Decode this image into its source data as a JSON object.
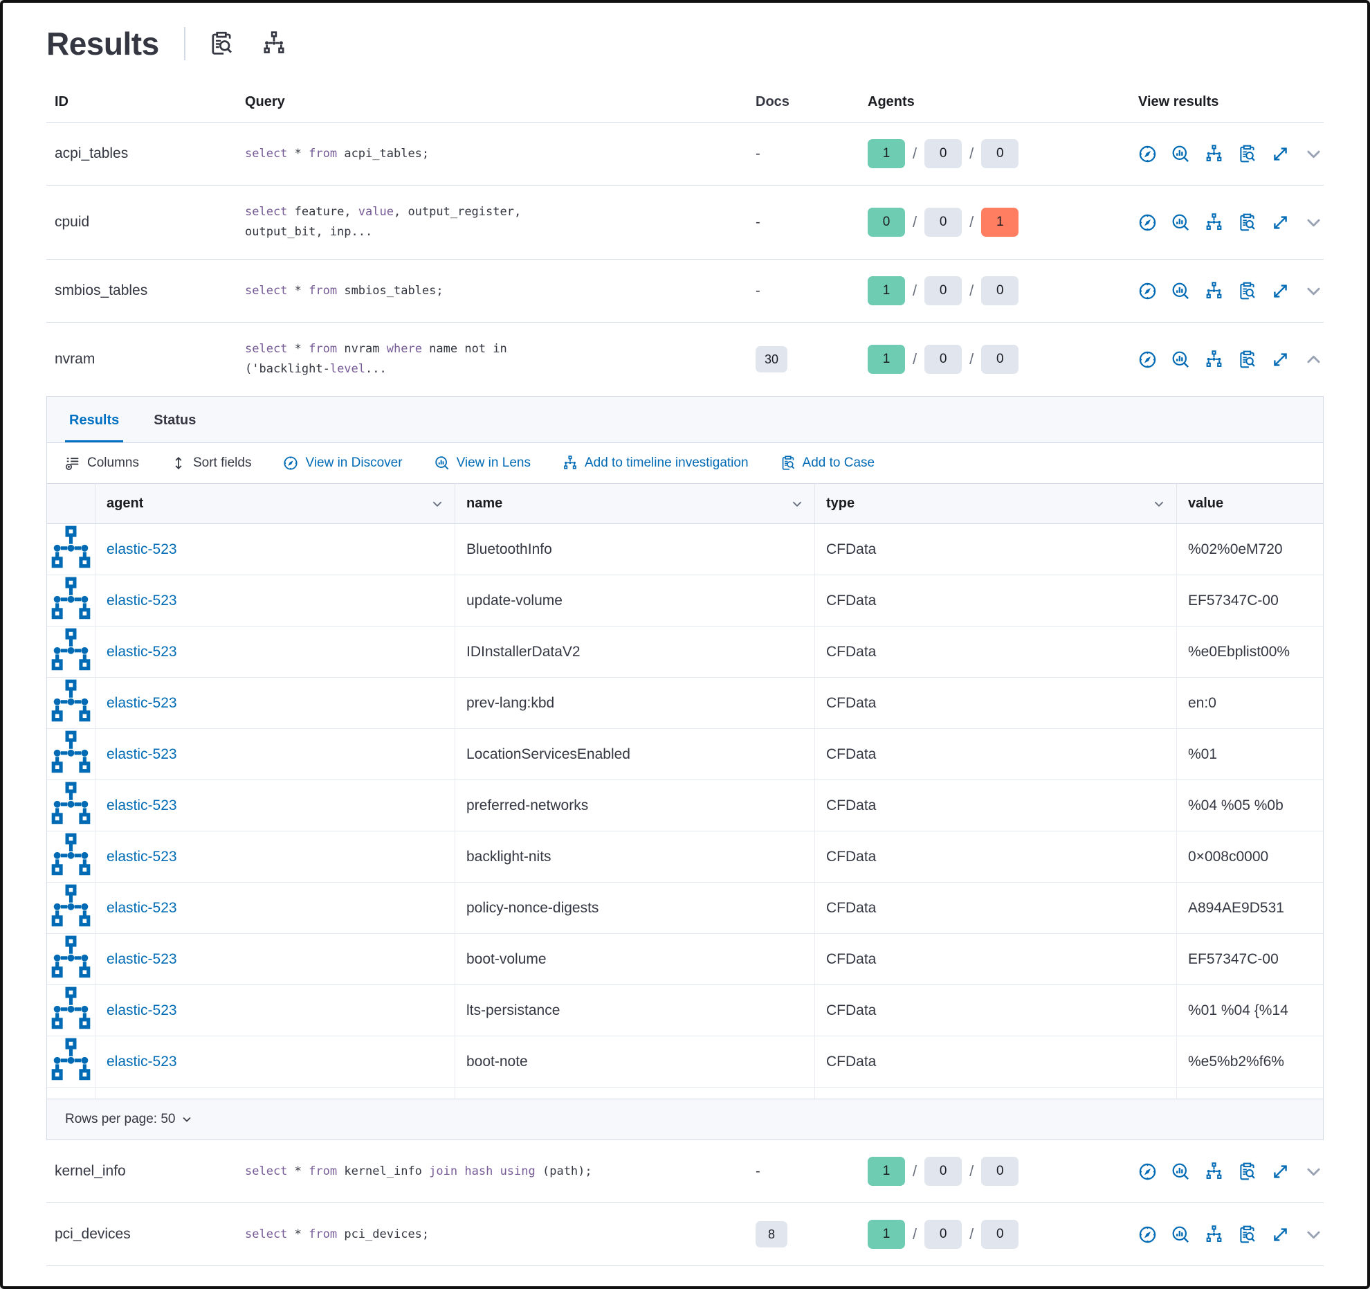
{
  "header": {
    "title": "Results",
    "icons": [
      {
        "name": "live-query-details-icon"
      },
      {
        "name": "timeline-icon"
      }
    ]
  },
  "colors": {
    "primary_blue": "#006bb4",
    "active_tab_blue": "#0071c2",
    "keyword_purple": "#765b96",
    "success_green": "#6dccb1",
    "danger_red": "#ff7e62",
    "neutral_gray": "#e0e5ee"
  },
  "queries_table": {
    "columns": {
      "id": "ID",
      "query": "Query",
      "docs": "Docs",
      "agents": "Agents",
      "view_results": "View results"
    },
    "rows": [
      {
        "id": "acpi_tables",
        "query": [
          {
            "t": "select",
            "k": 1
          },
          {
            "t": " * "
          },
          {
            "t": "from",
            "k": 1
          },
          {
            "t": " acpi_tables;"
          }
        ],
        "docs": "-",
        "docs_badge": false,
        "agents": {
          "success": "1",
          "pending": "0",
          "failed": "0",
          "failed_alert": false
        },
        "expanded": false
      },
      {
        "id": "cpuid",
        "query": [
          {
            "t": "select",
            "k": 1
          },
          {
            "t": " feature, "
          },
          {
            "t": "value",
            "k": 1
          },
          {
            "t": ", output_register, output_bit, inp..."
          }
        ],
        "docs": "-",
        "docs_badge": false,
        "agents": {
          "success": "0",
          "pending": "0",
          "failed": "1",
          "failed_alert": true
        },
        "expanded": false
      },
      {
        "id": "smbios_tables",
        "query": [
          {
            "t": "select",
            "k": 1
          },
          {
            "t": " * "
          },
          {
            "t": "from",
            "k": 1
          },
          {
            "t": " smbios_tables;"
          }
        ],
        "docs": "-",
        "docs_badge": false,
        "agents": {
          "success": "1",
          "pending": "0",
          "failed": "0",
          "failed_alert": false
        },
        "expanded": false
      },
      {
        "id": "nvram",
        "query": [
          {
            "t": "select",
            "k": 1
          },
          {
            "t": " * "
          },
          {
            "t": "from",
            "k": 1
          },
          {
            "t": " nvram "
          },
          {
            "t": "where",
            "k": 1
          },
          {
            "t": " name not in ('backlight-"
          },
          {
            "t": "level",
            "k": 1
          },
          {
            "t": "..."
          }
        ],
        "docs": "30",
        "docs_badge": true,
        "agents": {
          "success": "1",
          "pending": "0",
          "failed": "0",
          "failed_alert": false
        },
        "expanded": true
      },
      {
        "id": "kernel_info",
        "query": [
          {
            "t": "select",
            "k": 1
          },
          {
            "t": " * "
          },
          {
            "t": "from",
            "k": 1
          },
          {
            "t": " kernel_info "
          },
          {
            "t": "join",
            "k": 1
          },
          {
            "t": " "
          },
          {
            "t": "hash",
            "k": 1
          },
          {
            "t": " "
          },
          {
            "t": "using",
            "k": 1
          },
          {
            "t": " (path);"
          }
        ],
        "docs": "-",
        "docs_badge": false,
        "agents": {
          "success": "1",
          "pending": "0",
          "failed": "0",
          "failed_alert": false
        },
        "expanded": false
      },
      {
        "id": "pci_devices",
        "query": [
          {
            "t": "select",
            "k": 1
          },
          {
            "t": " * "
          },
          {
            "t": "from",
            "k": 1
          },
          {
            "t": " pci_devices;"
          }
        ],
        "docs": "8",
        "docs_badge": true,
        "agents": {
          "success": "1",
          "pending": "0",
          "failed": "0",
          "failed_alert": false
        },
        "expanded": false
      }
    ],
    "view_actions": [
      "discover-icon",
      "lens-icon",
      "timeline-icon",
      "case-icon",
      "expand-icon"
    ]
  },
  "expanded_panel": {
    "tabs": [
      {
        "label": "Results",
        "active": true
      },
      {
        "label": "Status",
        "active": false
      }
    ],
    "toolbar": [
      {
        "label": "Columns",
        "icon": "columns-icon",
        "style": "text"
      },
      {
        "label": "Sort fields",
        "icon": "sort-fields-icon",
        "style": "text"
      },
      {
        "label": "View in Discover",
        "icon": "discover-icon",
        "style": "primary"
      },
      {
        "label": "View in Lens",
        "icon": "lens-icon",
        "style": "primary"
      },
      {
        "label": "Add to timeline investigation",
        "icon": "timeline-icon",
        "style": "primary"
      },
      {
        "label": "Add to Case",
        "icon": "case-icon",
        "style": "primary"
      }
    ],
    "grid": {
      "columns": [
        {
          "label": "agent",
          "sortable": true
        },
        {
          "label": "name",
          "sortable": true
        },
        {
          "label": "type",
          "sortable": true
        },
        {
          "label": "value",
          "sortable": false
        }
      ],
      "rows": [
        {
          "agent": "elastic-523",
          "name": "BluetoothInfo",
          "type": "CFData",
          "value": "%02%0eM720"
        },
        {
          "agent": "elastic-523",
          "name": "update-volume",
          "type": "CFData",
          "value": "EF57347C-00"
        },
        {
          "agent": "elastic-523",
          "name": "IDInstallerDataV2",
          "type": "CFData",
          "value": "%e0Ebplist00%"
        },
        {
          "agent": "elastic-523",
          "name": "prev-lang:kbd",
          "type": "CFData",
          "value": "en:0"
        },
        {
          "agent": "elastic-523",
          "name": "LocationServicesEnabled",
          "type": "CFData",
          "value": "%01"
        },
        {
          "agent": "elastic-523",
          "name": "preferred-networks",
          "type": "CFData",
          "value": "%04 %05 %0b"
        },
        {
          "agent": "elastic-523",
          "name": "backlight-nits",
          "type": "CFData",
          "value": "0×008c0000"
        },
        {
          "agent": "elastic-523",
          "name": "policy-nonce-digests",
          "type": "CFData",
          "value": "A894AE9D531"
        },
        {
          "agent": "elastic-523",
          "name": "boot-volume",
          "type": "CFData",
          "value": "EF57347C-00"
        },
        {
          "agent": "elastic-523",
          "name": "lts-persistance",
          "type": "CFData",
          "value": "%01 %04 {%14"
        },
        {
          "agent": "elastic-523",
          "name": "boot-note",
          "type": "CFData",
          "value": "%e5%b2%f6%"
        }
      ]
    },
    "footer": {
      "rows_per_page_label": "Rows per page: 50"
    }
  }
}
